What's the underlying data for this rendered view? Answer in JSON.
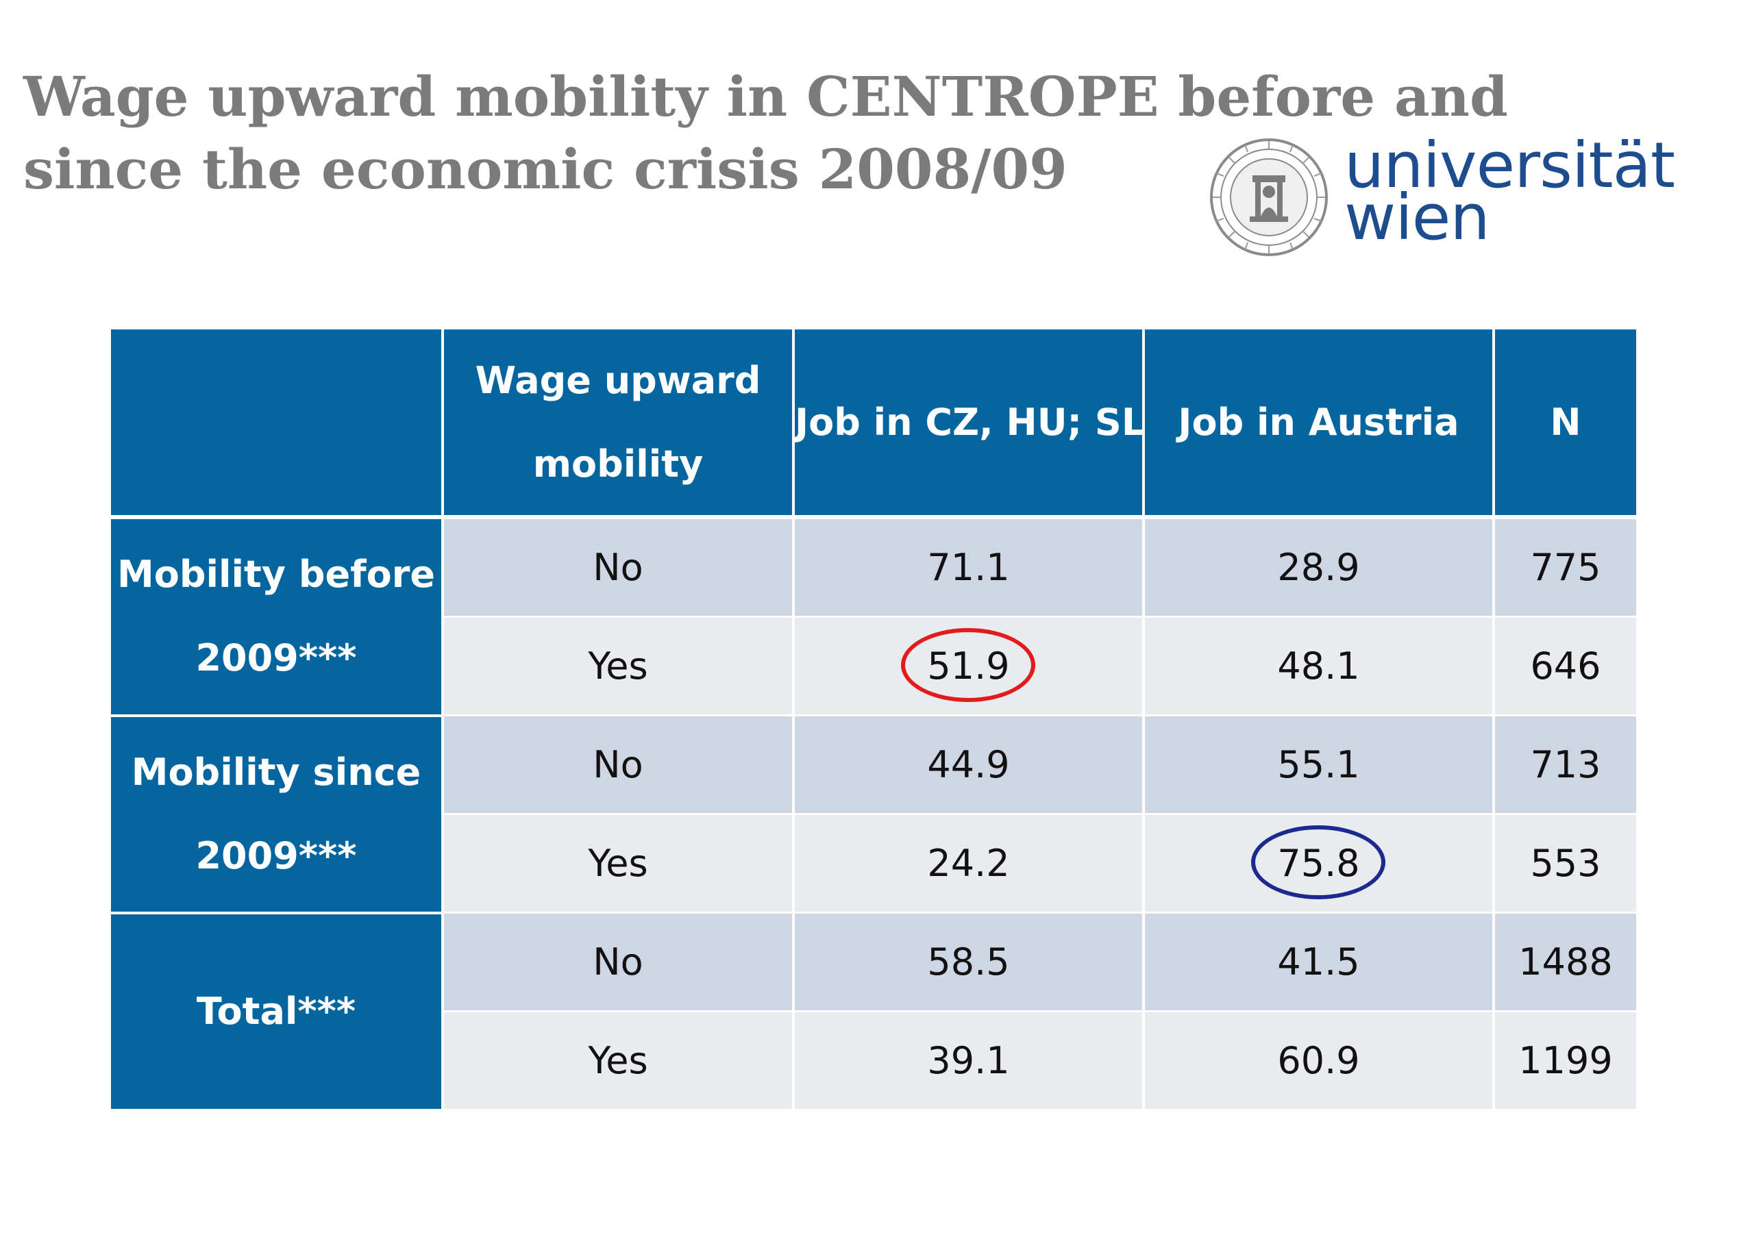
{
  "title": {
    "line1": "Wage upward mobility in CENTROPE before and",
    "line2": "since the economic crisis 2008/09"
  },
  "logo": {
    "line1": "universität",
    "line2": "wien",
    "brand_color": "#1d4d8f"
  },
  "table": {
    "header_color": "#05659e",
    "headers": {
      "stub": "",
      "wage": "Wage upward mobility",
      "wage_line1": "Wage upward",
      "wage_line2": "mobility",
      "cz": "Job in CZ, HU; SL",
      "austria": "Job in Austria",
      "n": "N"
    },
    "groups": [
      {
        "label": "Mobility before 2009***",
        "label_line1": "Mobility before",
        "label_line2": "2009***",
        "rows": [
          {
            "wage": "No",
            "cz": "71.1",
            "austria": "28.9",
            "n": "775"
          },
          {
            "wage": "Yes",
            "cz": "51.9",
            "austria": "48.1",
            "n": "646",
            "highlight": {
              "column": "cz",
              "color": "#e31b1b"
            }
          }
        ]
      },
      {
        "label": "Mobility since 2009***",
        "label_line1": "Mobility since",
        "label_line2": "2009***",
        "rows": [
          {
            "wage": "No",
            "cz": "44.9",
            "austria": "55.1",
            "n": "713"
          },
          {
            "wage": "Yes",
            "cz": "24.2",
            "austria": "75.8",
            "n": "553",
            "highlight": {
              "column": "austria",
              "color": "#1b2a8f"
            }
          }
        ]
      },
      {
        "label": "Total***",
        "label_line1": "Total***",
        "label_line2": "",
        "rows": [
          {
            "wage": "No",
            "cz": "58.5",
            "austria": "41.5",
            "n": "1488"
          },
          {
            "wage": "Yes",
            "cz": "39.1",
            "austria": "60.9",
            "n": "1199"
          }
        ]
      }
    ]
  }
}
